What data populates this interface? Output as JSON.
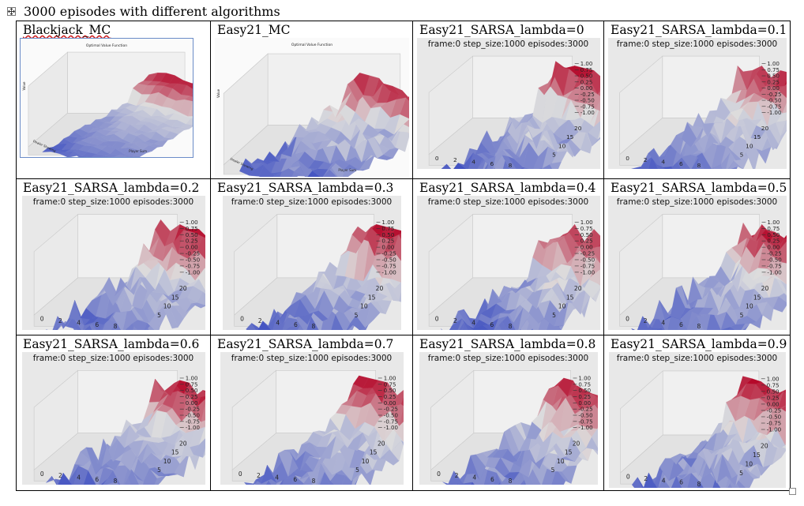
{
  "document": {
    "title": "3000 episodes with different algorithms"
  },
  "cells": [
    {
      "label": "Blackjack_MC",
      "subtitle": "",
      "kind": "bj",
      "chart_title": "Optimal Value Function",
      "xlabel": "Player Sum",
      "ylabel": "Dealer Showing",
      "zlabel": "Value"
    },
    {
      "label": "Easy21_MC",
      "subtitle": "",
      "kind": "e21mc",
      "chart_title": "Optimal Value Function",
      "xlabel": "Player Sum",
      "ylabel": "Dealer Showing",
      "zlabel": "Value"
    },
    {
      "label": "Easy21_SARSA_lambda=0",
      "subtitle": "frame:0 step_size:1000 episodes:3000",
      "kind": "sarsa"
    },
    {
      "label": "Easy21_SARSA_lambda=0.1",
      "subtitle": "frame:0 step_size:1000 episodes:3000",
      "kind": "sarsa"
    },
    {
      "label": "Easy21_SARSA_lambda=0.2",
      "subtitle": "frame:0 step_size:1000 episodes:3000",
      "kind": "sarsa"
    },
    {
      "label": "Easy21_SARSA_lambda=0.3",
      "subtitle": "frame:0 step_size:1000 episodes:3000",
      "kind": "sarsa"
    },
    {
      "label": "Easy21_SARSA_lambda=0.4",
      "subtitle": "frame:0 step_size:1000 episodes:3000",
      "kind": "sarsa"
    },
    {
      "label": "Easy21_SARSA_lambda=0.5",
      "subtitle": "frame:0 step_size:1000 episodes:3000",
      "kind": "sarsa"
    },
    {
      "label": "Easy21_SARSA_lambda=0.6",
      "subtitle": "frame:0 step_size:1000 episodes:3000",
      "kind": "sarsa"
    },
    {
      "label": "Easy21_SARSA_lambda=0.7",
      "subtitle": "frame:0 step_size:1000 episodes:3000",
      "kind": "sarsa"
    },
    {
      "label": "Easy21_SARSA_lambda=0.8",
      "subtitle": "frame:0 step_size:1000 episodes:3000",
      "kind": "sarsa"
    },
    {
      "label": "Easy21_SARSA_lambda=0.9",
      "subtitle": "frame:0 step_size:1000 episodes:3000",
      "kind": "sarsa"
    }
  ],
  "sarsa_axes": {
    "z_ticks": [
      "1.00",
      "0.75",
      "0.50",
      "0.25",
      "0.00",
      "-0.25",
      "-0.50",
      "-0.75",
      "-1.00"
    ],
    "x_ticks": [
      "0",
      "2",
      "4",
      "6",
      "8"
    ],
    "y_ticks": [
      "5",
      "10",
      "15",
      "20"
    ],
    "colormap": "coolwarm"
  },
  "colors": {
    "low": "#3b4cc0",
    "mid": "#dddddd",
    "high": "#b40426",
    "pane": "#e8e8e8"
  }
}
